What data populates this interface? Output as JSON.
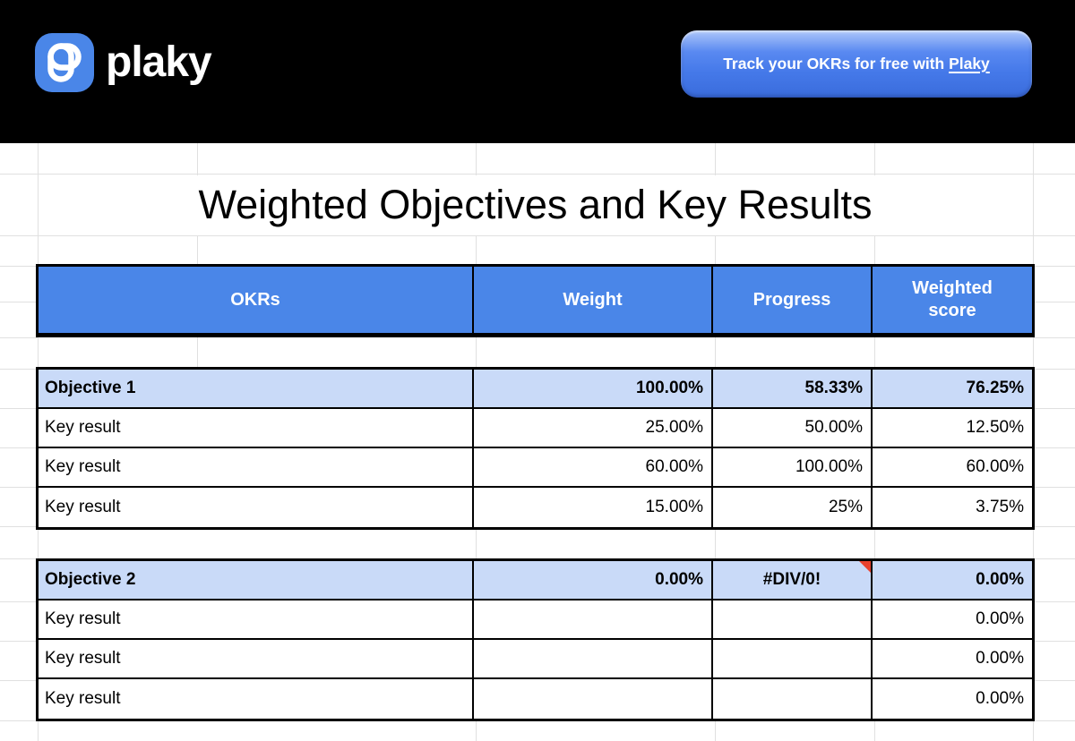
{
  "banner": {
    "brand": "plaky",
    "cta_prefix": "Track your OKRs for free with ",
    "cta_link": "Plaky"
  },
  "sheet": {
    "title": "Weighted Objectives and Key Results",
    "columns": [
      "OKRs",
      "Weight",
      "Progress",
      "Weighted score"
    ],
    "blocks": [
      {
        "header": {
          "label": "Objective 1",
          "weight": "100.00%",
          "progress": "58.33%",
          "weighted_score": "76.25%",
          "has_error_marker": false
        },
        "rows": [
          {
            "label": "Key result",
            "weight": "25.00%",
            "progress": "50.00%",
            "weighted_score": "12.50%"
          },
          {
            "label": "Key result",
            "weight": "60.00%",
            "progress": "100.00%",
            "weighted_score": "60.00%"
          },
          {
            "label": "Key result",
            "weight": "15.00%",
            "progress": "25%",
            "weighted_score": "3.75%"
          }
        ]
      },
      {
        "header": {
          "label": "Objective 2",
          "weight": "0.00%",
          "progress": "#DIV/0!",
          "weighted_score": "0.00%",
          "has_error_marker": true
        },
        "rows": [
          {
            "label": "Key result",
            "weight": "",
            "progress": "",
            "weighted_score": "0.00%"
          },
          {
            "label": "Key result",
            "weight": "",
            "progress": "",
            "weighted_score": "0.00%"
          },
          {
            "label": "Key result",
            "weight": "",
            "progress": "",
            "weighted_score": "0.00%"
          }
        ]
      }
    ]
  },
  "colors": {
    "banner_background": "#000000",
    "header_blue": "#4a86e8",
    "objective_row_blue": "#c9daf8",
    "gridline_gray": "#e0e0e0",
    "error_marker_red": "#e8412e",
    "cta_gradient_top": "#aec7fa",
    "cta_gradient_bottom": "#3a6cdc"
  }
}
